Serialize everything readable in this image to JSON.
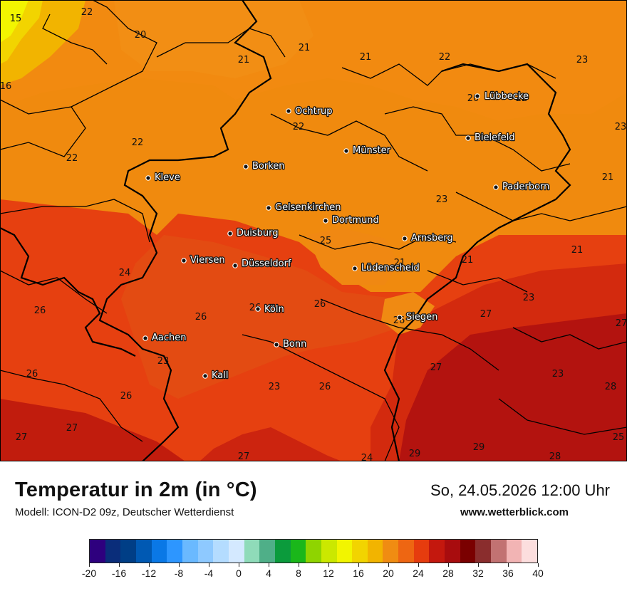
{
  "map": {
    "cities": [
      {
        "name": "Lübbecke"
      },
      {
        "name": "Ochtrup"
      },
      {
        "name": "Bielefeld"
      },
      {
        "name": "Münster"
      },
      {
        "name": "Borken"
      },
      {
        "name": "Kleve"
      },
      {
        "name": "Paderborn"
      },
      {
        "name": "Gelsenkirchen"
      },
      {
        "name": "Dortmund"
      },
      {
        "name": "Duisburg"
      },
      {
        "name": "Arnsberg"
      },
      {
        "name": "Viersen"
      },
      {
        "name": "Düsseldorf"
      },
      {
        "name": "Lüdenscheid"
      },
      {
        "name": "Köln"
      },
      {
        "name": "Siegen"
      },
      {
        "name": "Aachen"
      },
      {
        "name": "Bonn"
      },
      {
        "name": "Kall"
      }
    ],
    "isotherm_labels": [
      "15",
      "22",
      "20",
      "21",
      "21",
      "21",
      "22",
      "23",
      "16",
      "20",
      "22",
      "23",
      "22",
      "22",
      "22",
      "23",
      "21",
      "25",
      "21",
      "21",
      "21",
      "24",
      "26",
      "26",
      "26",
      "26",
      "26",
      "27",
      "23",
      "27",
      "23",
      "26",
      "23",
      "23",
      "26",
      "26",
      "27",
      "27",
      "27",
      "27",
      "24",
      "29",
      "29",
      "28",
      "28",
      "25"
    ]
  },
  "footer": {
    "title": "Temperatur in 2m (in °C)",
    "model": "Modell: ICON-D2 09z, Deutscher Wetterdienst",
    "datetime": "So, 24.05.2026 12:00 Uhr",
    "website": "www.wetterblick.com"
  },
  "legend": {
    "tick_labels": [
      "-20",
      "-16",
      "-12",
      "-8",
      "-4",
      "0",
      "4",
      "8",
      "12",
      "16",
      "20",
      "24",
      "28",
      "32",
      "36",
      "40"
    ],
    "colors": [
      "#2e007e",
      "#0a2d7a",
      "#003e86",
      "#0059b3",
      "#0a78e6",
      "#2d96ff",
      "#6ab9ff",
      "#8ec9ff",
      "#b4dcff",
      "#d4e9ff",
      "#8fdbb9",
      "#4faf88",
      "#0b9b3c",
      "#1ab71a",
      "#8fd400",
      "#cbe800",
      "#f2f500",
      "#f2d400",
      "#f2b400",
      "#f08c12",
      "#ee6612",
      "#e63c0e",
      "#c4180e",
      "#a80c0e",
      "#7a0000",
      "#8a2d2d",
      "#c27272",
      "#f2b4b4",
      "#fcdede"
    ]
  }
}
